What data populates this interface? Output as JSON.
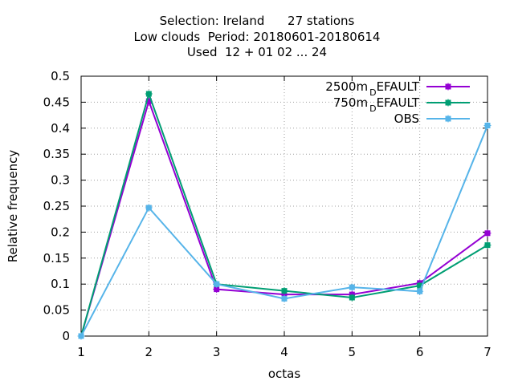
{
  "title_lines": [
    "Selection: Ireland      27 stations",
    "Low clouds  Period: 20180601-20180614",
    "Used  12 + 01 02 ... 24"
  ],
  "chart_data": {
    "type": "line",
    "title": "Selection: Ireland      27 stations / Low clouds  Period: 20180601-20180614 / Used  12 + 01 02 ... 24",
    "xlabel": "octas",
    "ylabel": "Relative frequency",
    "x": [
      1,
      2,
      3,
      4,
      5,
      6,
      7
    ],
    "xlim": [
      1,
      7
    ],
    "ylim": [
      0,
      0.5
    ],
    "xticks": [
      "1",
      "2",
      "3",
      "4",
      "5",
      "6",
      "7"
    ],
    "yticks": [
      "0",
      "0.05",
      "0.1",
      "0.15",
      "0.2",
      "0.25",
      "0.3",
      "0.35",
      "0.4",
      "0.45",
      "0.5"
    ],
    "grid": true,
    "legend_position": "top-right",
    "series": [
      {
        "name": "2500m_DEFAULT",
        "legend_main": "2500m",
        "legend_sub": "D",
        "legend_tail": "EFAULT",
        "color": "#9400d3",
        "values": [
          0.0,
          0.452,
          0.09,
          0.08,
          0.08,
          0.102,
          0.198
        ]
      },
      {
        "name": "750m_DEFAULT",
        "legend_main": "750m",
        "legend_sub": "D",
        "legend_tail": "EFAULT",
        "color": "#009e73",
        "values": [
          0.0,
          0.466,
          0.1,
          0.087,
          0.074,
          0.097,
          0.175
        ]
      },
      {
        "name": "OBS",
        "legend_main": "OBS",
        "legend_sub": "",
        "legend_tail": "",
        "color": "#56b4e9",
        "values": [
          0.0,
          0.247,
          0.1,
          0.072,
          0.094,
          0.086,
          0.405
        ]
      }
    ]
  }
}
